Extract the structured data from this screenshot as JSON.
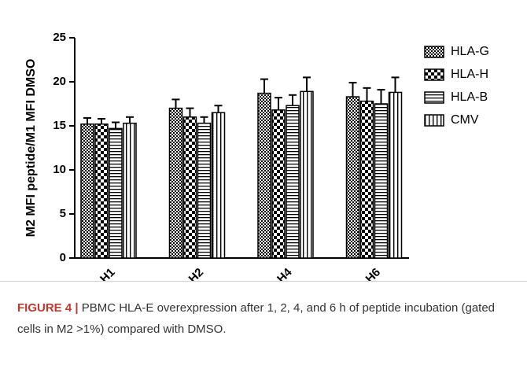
{
  "chart_data": {
    "type": "bar",
    "ylabel": "M2 MFI peptide/M1 MFI DMSO",
    "categories": [
      "H1",
      "H2",
      "H4",
      "H6"
    ],
    "series": [
      {
        "name": "HLA-G",
        "pattern": "checker-fine",
        "color": "#000000",
        "values": [
          15.2,
          17.0,
          18.7,
          18.3
        ],
        "errors": [
          0.7,
          1.0,
          1.6,
          1.6
        ]
      },
      {
        "name": "HLA-H",
        "pattern": "checker",
        "color": "#000000",
        "values": [
          15.2,
          16.0,
          16.8,
          17.8
        ],
        "errors": [
          0.6,
          1.0,
          1.4,
          1.5
        ]
      },
      {
        "name": "HLA-B",
        "pattern": "hstripe",
        "color": "#000000",
        "values": [
          14.7,
          15.3,
          17.3,
          17.5
        ],
        "errors": [
          0.7,
          0.7,
          1.2,
          1.6
        ]
      },
      {
        "name": "CMV",
        "pattern": "vstripe",
        "color": "#000000",
        "values": [
          15.3,
          16.5,
          18.9,
          18.8
        ],
        "errors": [
          0.7,
          0.8,
          1.6,
          1.7
        ]
      }
    ],
    "ylim": [
      0,
      25
    ],
    "yticks": [
      0,
      5,
      10,
      15,
      20,
      25
    ],
    "legend": "right",
    "caption": {
      "label": "FIGURE 4 |",
      "text": "PBMC HLA-E overexpression after 1, 2, 4, and 6 h of peptide incubation (gated cells in M2 >1%) compared with DMSO."
    }
  }
}
